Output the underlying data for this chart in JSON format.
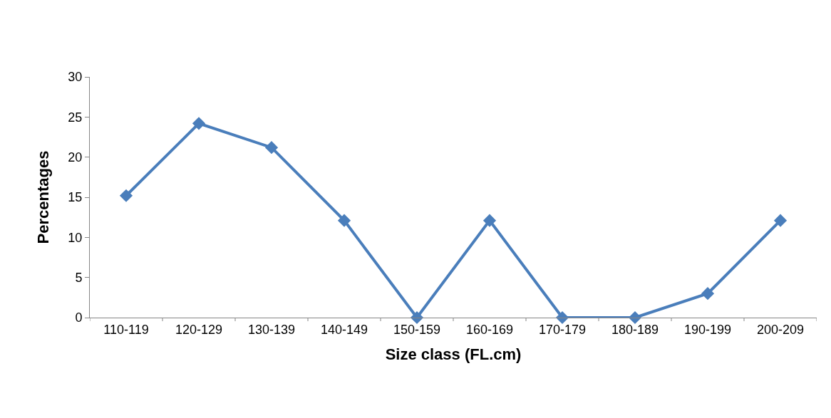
{
  "chart_data": {
    "type": "line",
    "xlabel": "Size class (FL.cm)",
    "ylabel": "Percentages",
    "categories": [
      "110-119",
      "120-129",
      "130-139",
      "140-149",
      "150-159",
      "160-169",
      "170-179",
      "180-189",
      "190-199",
      "200-209"
    ],
    "series": [
      {
        "color": "#4a7ebb",
        "values": [
          15.2,
          24.2,
          21.2,
          12.1,
          0,
          12.1,
          0,
          0,
          3,
          12.1
        ]
      }
    ],
    "ylim": [
      0,
      30
    ],
    "yticks": [
      0,
      5,
      10,
      15,
      20,
      25,
      30
    ],
    "grid": false,
    "legend": false,
    "marker": "diamond",
    "line_style": "solid"
  }
}
